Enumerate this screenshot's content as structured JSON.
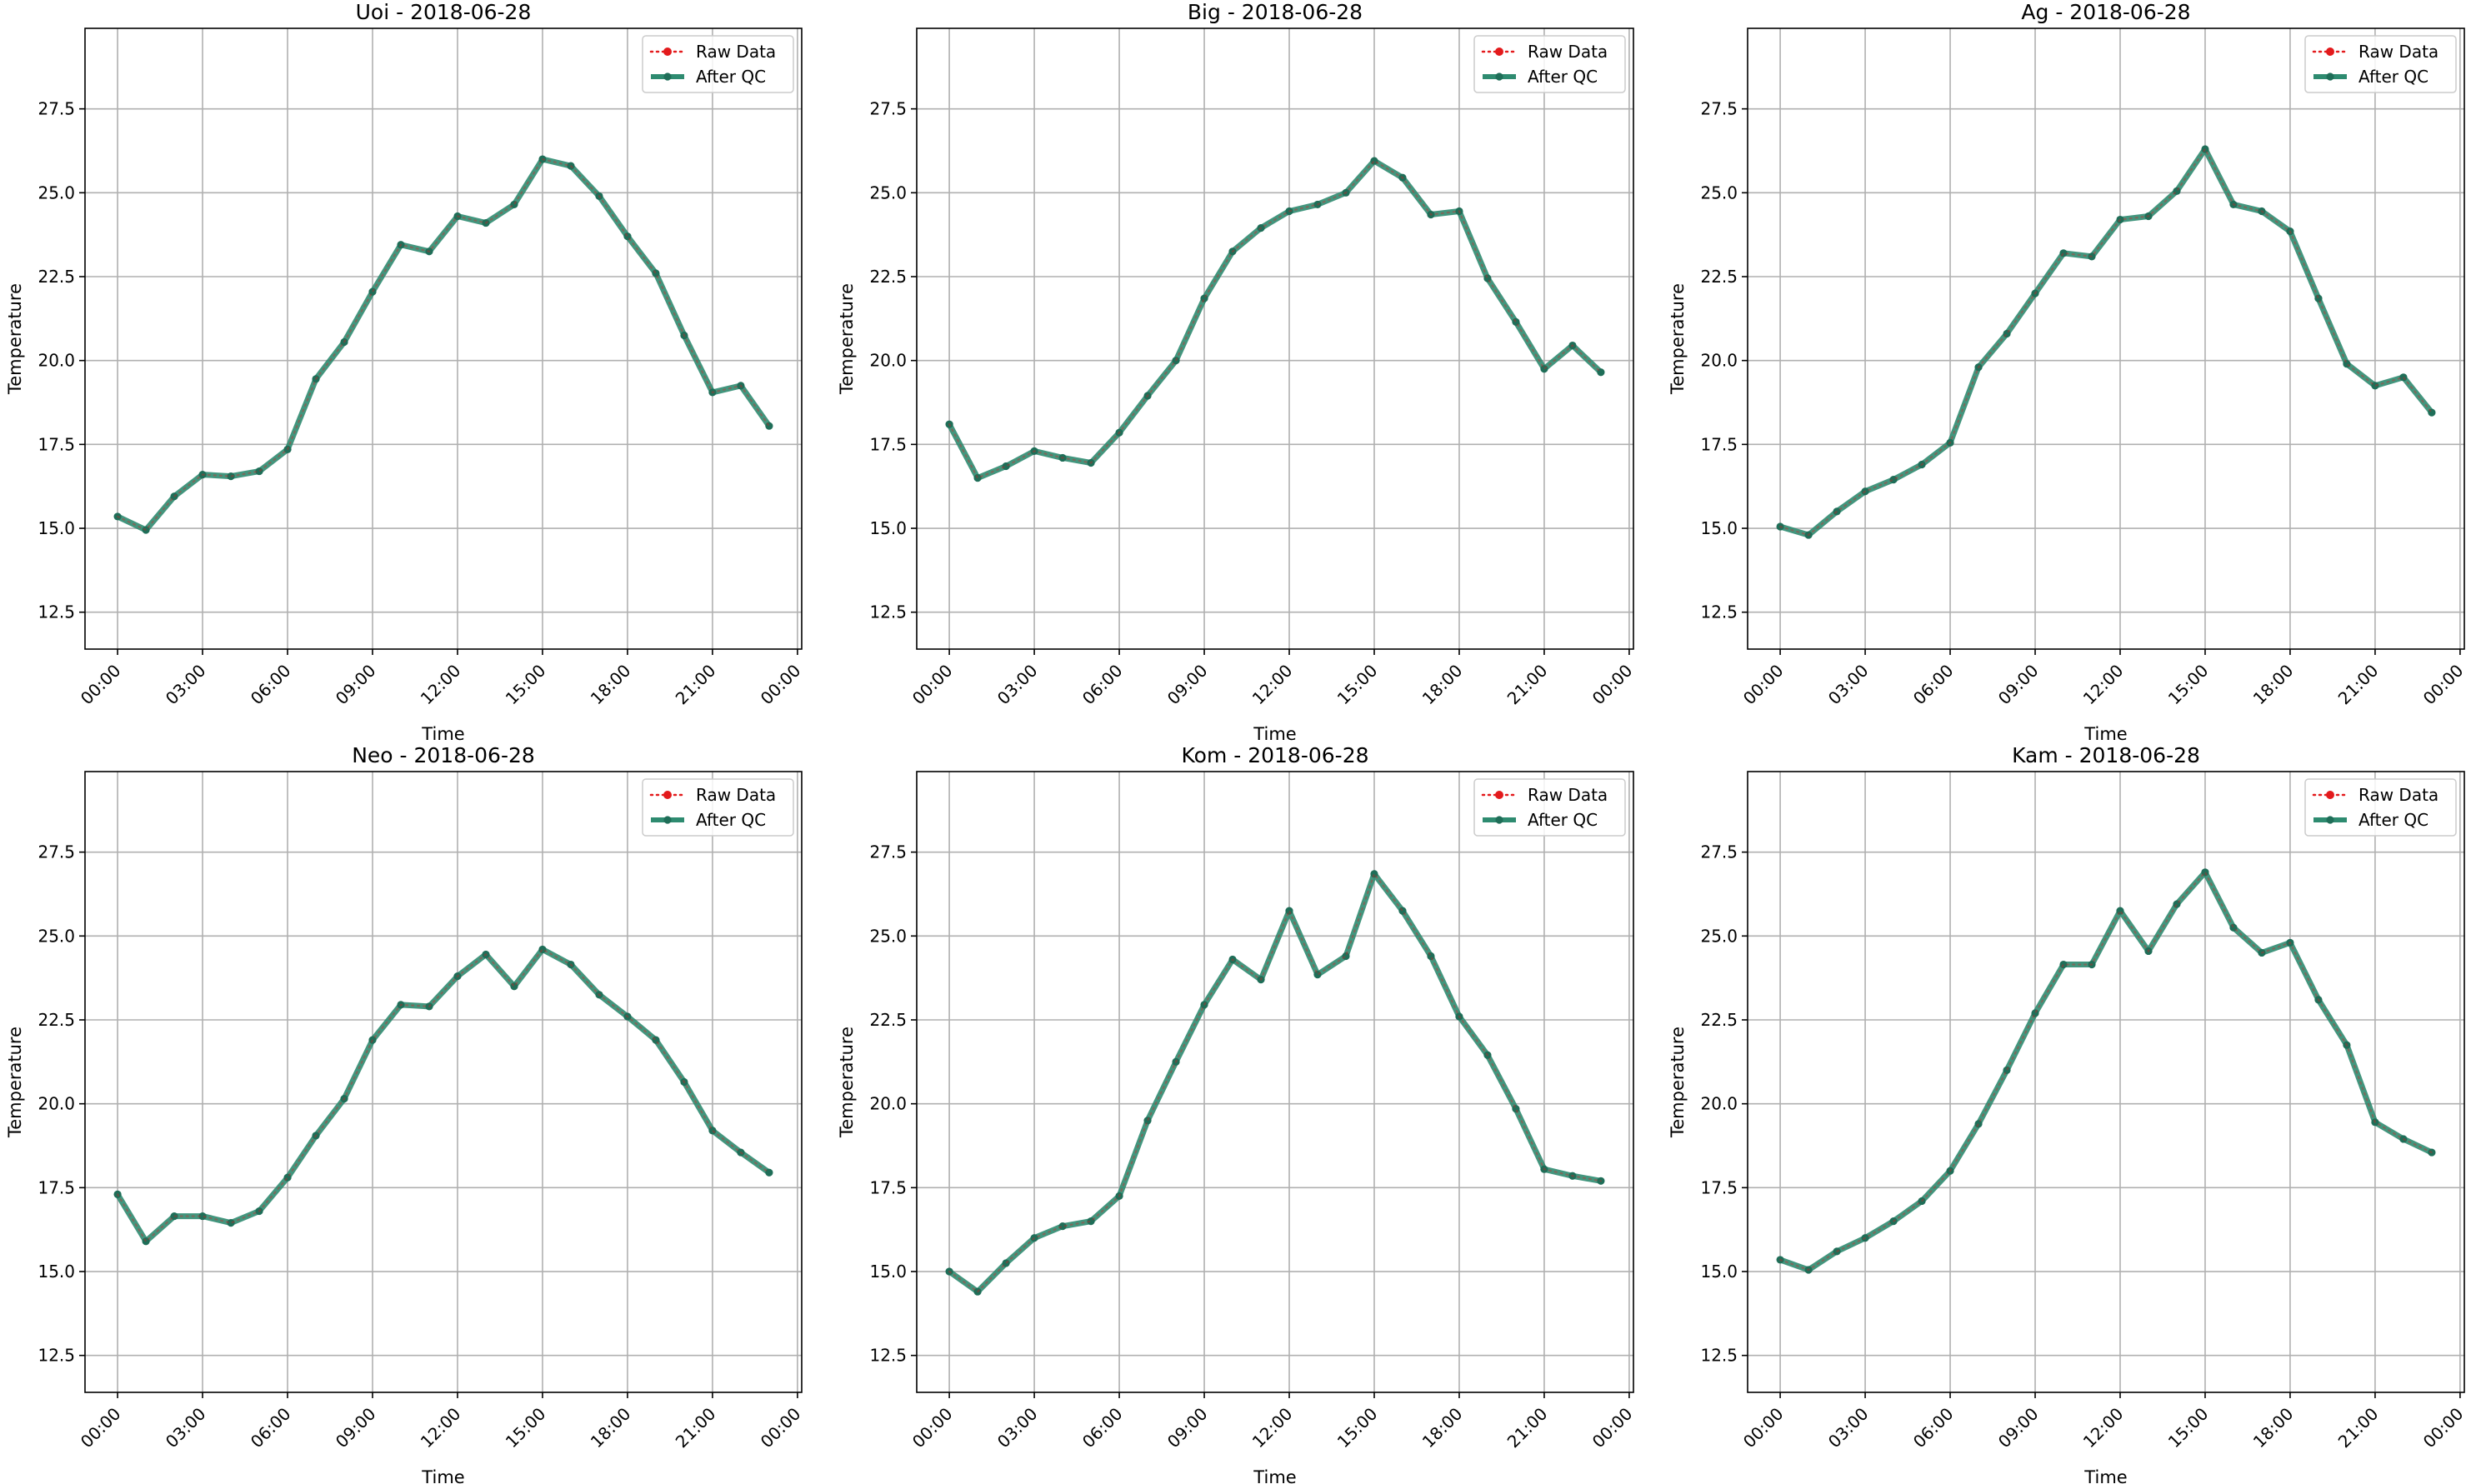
{
  "colors": {
    "raw": "#e31a1c",
    "qc": "#2e8b70",
    "qc_marker": "#1f6e58",
    "grid": "#b0b0b0",
    "axes": "#000000"
  },
  "chart_data": [
    {
      "type": "line",
      "title": "Uoi - 2018-06-28",
      "xlabel": "Time",
      "ylabel": "Temperature",
      "xlim": [
        -1.15,
        24.15
      ],
      "ylim": [
        11.4,
        29.9
      ],
      "xticks": [
        0,
        3,
        6,
        9,
        12,
        15,
        18,
        21,
        24
      ],
      "xtick_labels": [
        "00:00",
        "03:00",
        "06:00",
        "09:00",
        "12:00",
        "15:00",
        "18:00",
        "21:00",
        "00:00"
      ],
      "yticks": [
        12.5,
        15.0,
        17.5,
        20.0,
        22.5,
        25.0,
        27.5
      ],
      "ytick_labels": [
        "12.5",
        "15.0",
        "17.5",
        "20.0",
        "22.5",
        "25.0",
        "27.5"
      ],
      "grid": true,
      "legend": "top-right",
      "x": [
        0,
        1,
        2,
        3,
        4,
        5,
        6,
        7,
        8,
        9,
        10,
        11,
        12,
        13,
        14,
        15,
        16,
        17,
        18,
        19,
        20,
        21,
        22,
        23
      ],
      "series": [
        {
          "name": "Raw Data",
          "values": [
            15.35,
            14.95,
            15.95,
            16.6,
            16.55,
            16.7,
            17.35,
            19.45,
            20.55,
            22.05,
            23.45,
            23.25,
            24.3,
            24.1,
            24.65,
            26.0,
            25.8,
            24.9,
            23.7,
            22.6,
            20.75,
            19.05,
            19.25,
            18.05
          ]
        },
        {
          "name": "After QC",
          "values": [
            15.35,
            14.95,
            15.95,
            16.6,
            16.55,
            16.7,
            17.35,
            19.45,
            20.55,
            22.05,
            23.45,
            23.25,
            24.3,
            24.1,
            24.65,
            26.0,
            25.8,
            24.9,
            23.7,
            22.6,
            20.75,
            19.05,
            19.25,
            18.05
          ]
        }
      ]
    },
    {
      "type": "line",
      "title": "Big - 2018-06-28",
      "xlabel": "Time",
      "ylabel": "Temperature",
      "xlim": [
        -1.15,
        24.15
      ],
      "ylim": [
        11.4,
        29.9
      ],
      "xticks": [
        0,
        3,
        6,
        9,
        12,
        15,
        18,
        21,
        24
      ],
      "xtick_labels": [
        "00:00",
        "03:00",
        "06:00",
        "09:00",
        "12:00",
        "15:00",
        "18:00",
        "21:00",
        "00:00"
      ],
      "yticks": [
        12.5,
        15.0,
        17.5,
        20.0,
        22.5,
        25.0,
        27.5
      ],
      "ytick_labels": [
        "12.5",
        "15.0",
        "17.5",
        "20.0",
        "22.5",
        "25.0",
        "27.5"
      ],
      "grid": true,
      "legend": "top-right",
      "x": [
        0,
        1,
        2,
        3,
        4,
        5,
        6,
        7,
        8,
        9,
        10,
        11,
        12,
        13,
        14,
        15,
        16,
        17,
        18,
        19,
        20,
        21,
        22,
        23
      ],
      "series": [
        {
          "name": "Raw Data",
          "values": [
            18.1,
            16.5,
            16.85,
            17.3,
            17.1,
            16.95,
            17.85,
            18.95,
            20.0,
            21.85,
            23.25,
            23.95,
            24.45,
            24.65,
            25.0,
            25.95,
            25.45,
            24.35,
            24.45,
            22.45,
            21.15,
            19.75,
            20.45,
            19.65
          ]
        },
        {
          "name": "After QC",
          "values": [
            18.1,
            16.5,
            16.85,
            17.3,
            17.1,
            16.95,
            17.85,
            18.95,
            20.0,
            21.85,
            23.25,
            23.95,
            24.45,
            24.65,
            25.0,
            25.95,
            25.45,
            24.35,
            24.45,
            22.45,
            21.15,
            19.75,
            20.45,
            19.65
          ]
        }
      ]
    },
    {
      "type": "line",
      "title": "Ag - 2018-06-28",
      "xlabel": "Time",
      "ylabel": "Temperature",
      "xlim": [
        -1.15,
        24.15
      ],
      "ylim": [
        11.4,
        29.9
      ],
      "xticks": [
        0,
        3,
        6,
        9,
        12,
        15,
        18,
        21,
        24
      ],
      "xtick_labels": [
        "00:00",
        "03:00",
        "06:00",
        "09:00",
        "12:00",
        "15:00",
        "18:00",
        "21:00",
        "00:00"
      ],
      "yticks": [
        12.5,
        15.0,
        17.5,
        20.0,
        22.5,
        25.0,
        27.5
      ],
      "ytick_labels": [
        "12.5",
        "15.0",
        "17.5",
        "20.0",
        "22.5",
        "25.0",
        "27.5"
      ],
      "grid": true,
      "legend": "top-right",
      "x": [
        0,
        1,
        2,
        3,
        4,
        5,
        6,
        7,
        8,
        9,
        10,
        11,
        12,
        13,
        14,
        15,
        16,
        17,
        18,
        19,
        20,
        21,
        22,
        23
      ],
      "series": [
        {
          "name": "Raw Data",
          "values": [
            15.05,
            14.8,
            15.5,
            16.1,
            16.45,
            16.9,
            17.55,
            19.8,
            20.8,
            22.0,
            23.2,
            23.1,
            24.2,
            24.3,
            25.05,
            26.3,
            24.65,
            24.45,
            23.85,
            21.85,
            19.9,
            19.25,
            19.5,
            18.45
          ]
        },
        {
          "name": "After QC",
          "values": [
            15.05,
            14.8,
            15.5,
            16.1,
            16.45,
            16.9,
            17.55,
            19.8,
            20.8,
            22.0,
            23.2,
            23.1,
            24.2,
            24.3,
            25.05,
            26.3,
            24.65,
            24.45,
            23.85,
            21.85,
            19.9,
            19.25,
            19.5,
            18.45
          ]
        }
      ]
    },
    {
      "type": "line",
      "title": "Neo - 2018-06-28",
      "xlabel": "Time",
      "ylabel": "Temperature",
      "xlim": [
        -1.15,
        24.15
      ],
      "ylim": [
        11.4,
        29.9
      ],
      "xticks": [
        0,
        3,
        6,
        9,
        12,
        15,
        18,
        21,
        24
      ],
      "xtick_labels": [
        "00:00",
        "03:00",
        "06:00",
        "09:00",
        "12:00",
        "15:00",
        "18:00",
        "21:00",
        "00:00"
      ],
      "yticks": [
        12.5,
        15.0,
        17.5,
        20.0,
        22.5,
        25.0,
        27.5
      ],
      "ytick_labels": [
        "12.5",
        "15.0",
        "17.5",
        "20.0",
        "22.5",
        "25.0",
        "27.5"
      ],
      "grid": true,
      "legend": "top-right",
      "x": [
        0,
        1,
        2,
        3,
        4,
        5,
        6,
        7,
        8,
        9,
        10,
        11,
        12,
        13,
        14,
        15,
        16,
        17,
        18,
        19,
        20,
        21,
        22,
        23
      ],
      "series": [
        {
          "name": "Raw Data",
          "values": [
            17.3,
            15.9,
            16.65,
            16.65,
            16.45,
            16.8,
            17.8,
            19.05,
            20.15,
            21.9,
            22.95,
            22.9,
            23.8,
            24.45,
            23.5,
            24.6,
            24.15,
            23.25,
            22.6,
            21.9,
            20.65,
            19.2,
            18.55,
            17.95
          ]
        },
        {
          "name": "After QC",
          "values": [
            17.3,
            15.9,
            16.65,
            16.65,
            16.45,
            16.8,
            17.8,
            19.05,
            20.15,
            21.9,
            22.95,
            22.9,
            23.8,
            24.45,
            23.5,
            24.6,
            24.15,
            23.25,
            22.6,
            21.9,
            20.65,
            19.2,
            18.55,
            17.95
          ]
        }
      ]
    },
    {
      "type": "line",
      "title": "Kom - 2018-06-28",
      "xlabel": "Time",
      "ylabel": "Temperature",
      "xlim": [
        -1.15,
        24.15
      ],
      "ylim": [
        11.4,
        29.9
      ],
      "xticks": [
        0,
        3,
        6,
        9,
        12,
        15,
        18,
        21,
        24
      ],
      "xtick_labels": [
        "00:00",
        "03:00",
        "06:00",
        "09:00",
        "12:00",
        "15:00",
        "18:00",
        "21:00",
        "00:00"
      ],
      "yticks": [
        12.5,
        15.0,
        17.5,
        20.0,
        22.5,
        25.0,
        27.5
      ],
      "ytick_labels": [
        "12.5",
        "15.0",
        "17.5",
        "20.0",
        "22.5",
        "25.0",
        "27.5"
      ],
      "grid": true,
      "legend": "top-right",
      "x": [
        0,
        1,
        2,
        3,
        4,
        5,
        6,
        7,
        8,
        9,
        10,
        11,
        12,
        13,
        14,
        15,
        16,
        17,
        18,
        19,
        20,
        21,
        22,
        23
      ],
      "series": [
        {
          "name": "Raw Data",
          "values": [
            15.0,
            14.4,
            15.25,
            16.0,
            16.35,
            16.5,
            17.25,
            19.5,
            21.25,
            22.95,
            24.3,
            23.7,
            25.75,
            23.85,
            24.4,
            26.85,
            25.75,
            24.4,
            22.6,
            21.45,
            19.85,
            18.05,
            17.85,
            17.7
          ]
        },
        {
          "name": "After QC",
          "values": [
            15.0,
            14.4,
            15.25,
            16.0,
            16.35,
            16.5,
            17.25,
            19.5,
            21.25,
            22.95,
            24.3,
            23.7,
            25.75,
            23.85,
            24.4,
            26.85,
            25.75,
            24.4,
            22.6,
            21.45,
            19.85,
            18.05,
            17.85,
            17.7
          ]
        }
      ]
    },
    {
      "type": "line",
      "title": "Kam - 2018-06-28",
      "xlabel": "Time",
      "ylabel": "Temperature",
      "xlim": [
        -1.15,
        24.15
      ],
      "ylim": [
        11.4,
        29.9
      ],
      "xticks": [
        0,
        3,
        6,
        9,
        12,
        15,
        18,
        21,
        24
      ],
      "xtick_labels": [
        "00:00",
        "03:00",
        "06:00",
        "09:00",
        "12:00",
        "15:00",
        "18:00",
        "21:00",
        "00:00"
      ],
      "yticks": [
        12.5,
        15.0,
        17.5,
        20.0,
        22.5,
        25.0,
        27.5
      ],
      "ytick_labels": [
        "12.5",
        "15.0",
        "17.5",
        "20.0",
        "22.5",
        "25.0",
        "27.5"
      ],
      "grid": true,
      "legend": "top-right",
      "x": [
        0,
        1,
        2,
        3,
        4,
        5,
        6,
        7,
        8,
        9,
        10,
        11,
        12,
        13,
        14,
        15,
        16,
        17,
        18,
        19,
        20,
        21,
        22,
        23
      ],
      "series": [
        {
          "name": "Raw Data",
          "values": [
            15.35,
            15.05,
            15.6,
            16.0,
            16.5,
            17.1,
            18.0,
            19.4,
            21.0,
            22.7,
            24.15,
            24.15,
            25.75,
            24.55,
            25.95,
            26.9,
            25.25,
            24.5,
            24.8,
            23.1,
            21.75,
            19.45,
            18.95,
            18.55
          ]
        },
        {
          "name": "After QC",
          "values": [
            15.35,
            15.05,
            15.6,
            16.0,
            16.5,
            17.1,
            18.0,
            19.4,
            21.0,
            22.7,
            24.15,
            24.15,
            25.75,
            24.55,
            25.95,
            26.9,
            25.25,
            24.5,
            24.8,
            23.1,
            21.75,
            19.45,
            18.95,
            18.55
          ]
        }
      ]
    }
  ]
}
